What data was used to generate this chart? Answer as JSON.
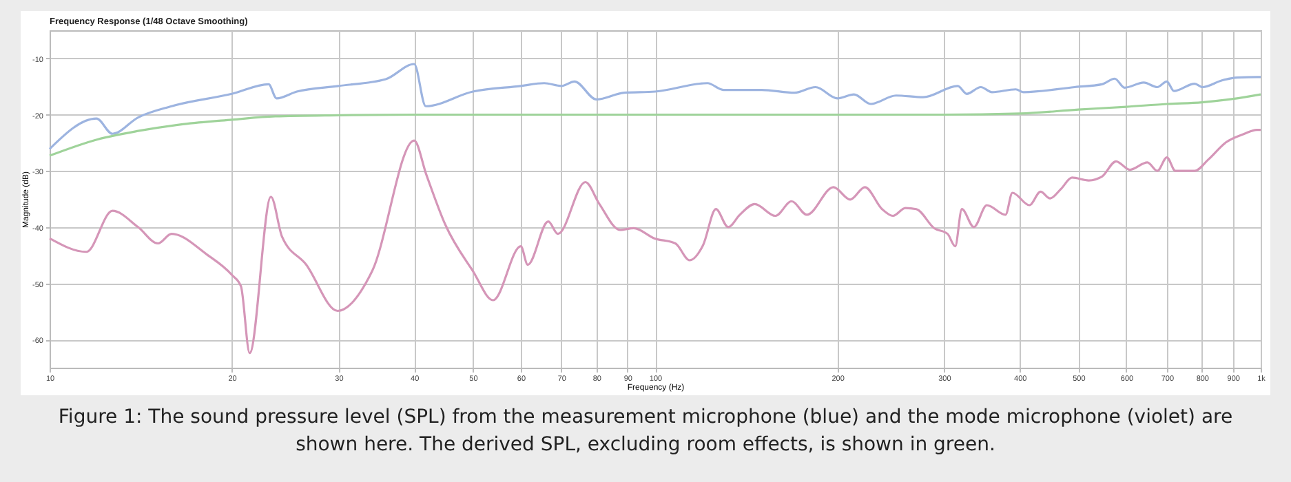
{
  "chart_data": {
    "type": "line",
    "title": "Frequency Response (1/48 Octave Smoothing)",
    "xlabel": "Frequency (Hz)",
    "ylabel": "Magnitude (dB)",
    "annotations": [
      "Figure 1: The sound pressure level (SPL) from the measurement microphone (blue) and the mode microphone (violet) are shown here. The derived SPL, excluding room effects, is shown in green."
    ],
    "log": "x",
    "grid": true,
    "legend": false,
    "line_style": "solid",
    "marker": "none",
    "xlim": [
      10,
      1000
    ],
    "ylim": [
      -65,
      -5
    ],
    "xticks": [
      10,
      20,
      30,
      40,
      50,
      60,
      70,
      80,
      90,
      100,
      200,
      300,
      400,
      500,
      600,
      700,
      800,
      900,
      {
        "value": 1000,
        "label": "1k"
      }
    ],
    "yticks": [
      -10,
      -20,
      -30,
      -40,
      -50,
      -60
    ],
    "series": [
      {
        "color": "#9db4e0",
        "x": [
          10,
          11.95,
          12.7,
          14.0,
          15.9,
          20,
          23.0,
          23.7,
          25.6,
          30,
          35.9,
          40,
          41.8,
          50,
          60,
          65.6,
          70,
          73.6,
          80,
          88.9,
          100,
          122,
          129.6,
          150,
          170,
          184,
          200,
          213,
          227,
          250,
          277,
          316,
          327,
          345,
          360,
          394,
          406,
          493,
          547,
          574,
          596,
          641,
          675,
          700,
          719,
          778,
          802,
          863,
          915,
          985,
          1000
        ],
        "values": [
          -26.1,
          -20.7,
          -23.4,
          -20.5,
          -18.5,
          -16.3,
          -14.6,
          -17.1,
          -15.9,
          -14.9,
          -13.7,
          -11.0,
          -18.5,
          -15.9,
          -14.9,
          -14.4,
          -14.9,
          -14.1,
          -17.3,
          -16.1,
          -15.9,
          -14.4,
          -15.6,
          -15.6,
          -16.1,
          -15.1,
          -17.1,
          -16.4,
          -18.1,
          -16.6,
          -16.9,
          -14.9,
          -16.3,
          -15.1,
          -16.0,
          -15.5,
          -16.0,
          -15.1,
          -14.6,
          -13.6,
          -15.2,
          -14.3,
          -15.1,
          -14.1,
          -15.8,
          -14.5,
          -15.1,
          -13.9,
          -13.4,
          -13.3,
          -13.3
        ]
      },
      {
        "color": "#9fd39a",
        "x": [
          10,
          12,
          14,
          16.6,
          20,
          23.6,
          30,
          40,
          100,
          200,
          300,
          400,
          500,
          600,
          700,
          800,
          900,
          1000
        ],
        "values": [
          -27.3,
          -24.4,
          -22.9,
          -21.7,
          -20.9,
          -20.3,
          -20.1,
          -20.0,
          -20.0,
          -20.0,
          -20.0,
          -19.8,
          -19.1,
          -18.6,
          -18.1,
          -17.8,
          -17.2,
          -16.4
        ]
      },
      {
        "color": "#d596b8",
        "x": [
          10,
          11.5,
          12.7,
          14.0,
          15.1,
          15.9,
          18.2,
          20,
          20.7,
          21.4,
          23.2,
          24.2,
          26.5,
          29.9,
          34.1,
          40,
          41.9,
          45,
          50,
          54,
          60,
          61.6,
          66.6,
          69.1,
          76.7,
          80.9,
          87.5,
          92.2,
          99.7,
          108,
          114,
          120,
          126,
          132,
          138,
          146,
          158,
          168,
          178,
          197,
          210,
          222,
          237,
          247,
          259,
          270,
          289,
          304,
          313,
          321,
          336,
          353,
          379,
          389,
          415,
          433,
          449,
          468,
          488,
          520,
          547,
          577,
          608,
          650,
          675,
          700,
          723,
          778,
          819,
          877,
          940,
          985,
          1000
        ],
        "values": [
          -42.0,
          -44.4,
          -37.1,
          -40.0,
          -42.9,
          -41.2,
          -44.9,
          -48.5,
          -50.5,
          -62.4,
          -34.6,
          -41.7,
          -46.6,
          -54.9,
          -47.8,
          -24.6,
          -30.7,
          -39.5,
          -47.8,
          -53.0,
          -43.4,
          -46.7,
          -39.0,
          -41.2,
          -32.0,
          -35.9,
          -40.5,
          -40.2,
          -42.0,
          -42.9,
          -45.9,
          -43.2,
          -36.8,
          -40.0,
          -37.8,
          -35.9,
          -38.0,
          -35.4,
          -37.8,
          -32.9,
          -35.1,
          -32.9,
          -36.8,
          -38.0,
          -36.6,
          -36.8,
          -40.2,
          -41.2,
          -43.4,
          -36.8,
          -40.0,
          -36.1,
          -37.8,
          -33.9,
          -36.1,
          -33.7,
          -34.9,
          -33.2,
          -31.2,
          -31.7,
          -31.0,
          -28.3,
          -29.8,
          -28.5,
          -30.0,
          -27.6,
          -30.0,
          -30.0,
          -28.0,
          -24.9,
          -23.4,
          -22.7,
          -22.7
        ]
      }
    ]
  }
}
